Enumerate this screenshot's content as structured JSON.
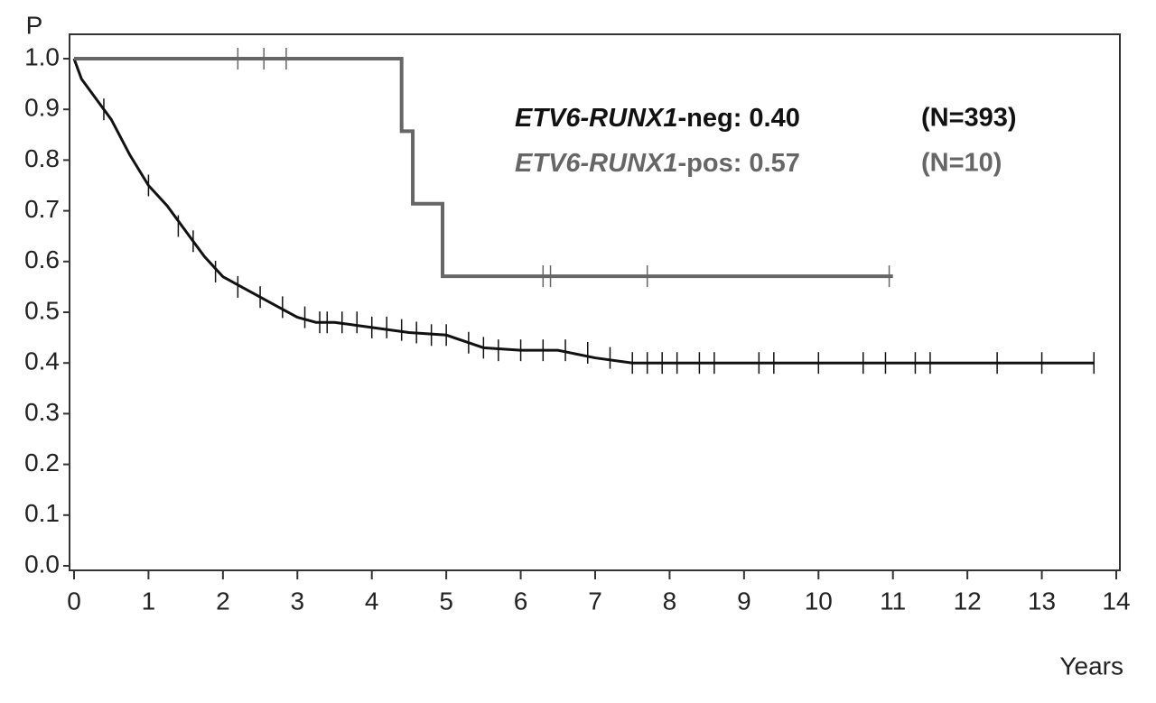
{
  "chart_data": {
    "type": "line",
    "step": true,
    "y_label": "P",
    "x_label": "Years",
    "xlim": [
      0,
      14
    ],
    "ylim": [
      0,
      1
    ],
    "xticks": [
      0,
      1,
      2,
      3,
      4,
      5,
      6,
      7,
      8,
      9,
      10,
      11,
      12,
      13,
      14
    ],
    "yticks": [
      {
        "value": 0,
        "label": "0.0"
      },
      0.1,
      0.2,
      0.3,
      0.4,
      0.5,
      0.6,
      0.7,
      0.8,
      0.9,
      {
        "value": 1,
        "label": "1.0"
      }
    ],
    "series": [
      {
        "gene": "ETV6-RUNX1",
        "text": "-neg: 0.40",
        "n": "(N=393)",
        "color": "#111111",
        "x": [
          0,
          0.1,
          0.25,
          0.5,
          0.75,
          1,
          1.25,
          1.5,
          1.75,
          2,
          2.25,
          2.5,
          2.75,
          3,
          3.25,
          3.5,
          4,
          4.5,
          5,
          5.5,
          6,
          6.5,
          7,
          7.5,
          13.7
        ],
        "values": [
          1,
          0.96,
          0.93,
          0.88,
          0.81,
          0.75,
          0.71,
          0.66,
          0.61,
          0.57,
          0.55,
          0.53,
          0.51,
          0.49,
          0.48,
          0.48,
          0.47,
          0.46,
          0.455,
          0.43,
          0.425,
          0.425,
          0.41,
          0.4,
          0.4
        ],
        "censored_x": [
          0.4,
          1.0,
          1.4,
          1.6,
          1.9,
          2.2,
          2.5,
          2.8,
          3.1,
          3.3,
          3.4,
          3.6,
          3.8,
          4.0,
          4.2,
          4.4,
          4.6,
          4.8,
          5.0,
          5.3,
          5.5,
          5.7,
          6.0,
          6.3,
          6.6,
          6.9,
          7.2,
          7.5,
          7.7,
          7.9,
          8.1,
          8.4,
          8.6,
          9.2,
          9.4,
          10.0,
          10.6,
          10.9,
          11.3,
          11.5,
          12.4,
          13.0,
          13.7
        ],
        "censored_values": [
          0.9,
          0.75,
          0.67,
          0.64,
          0.58,
          0.55,
          0.53,
          0.51,
          0.49,
          0.48,
          0.48,
          0.48,
          0.48,
          0.47,
          0.47,
          0.465,
          0.46,
          0.455,
          0.455,
          0.44,
          0.43,
          0.425,
          0.425,
          0.425,
          0.425,
          0.42,
          0.41,
          0.4,
          0.4,
          0.4,
          0.4,
          0.4,
          0.4,
          0.4,
          0.4,
          0.4,
          0.4,
          0.4,
          0.4,
          0.4,
          0.4,
          0.4,
          0.4
        ]
      },
      {
        "gene": "ETV6-RUNX1",
        "text": "-pos: 0.57",
        "n": "(N=10)",
        "color": "#666666",
        "x": [
          0,
          4.4,
          4.4,
          4.55,
          4.55,
          4.95,
          4.95,
          11.0
        ],
        "values": [
          1,
          1,
          0.857,
          0.857,
          0.714,
          0.714,
          0.571,
          0.571
        ],
        "censored_x": [
          2.2,
          2.55,
          2.85,
          6.3,
          6.4,
          7.7,
          10.95
        ],
        "censored_values": [
          1,
          1,
          1,
          0.571,
          0.571,
          0.571,
          0.571
        ]
      }
    ]
  }
}
